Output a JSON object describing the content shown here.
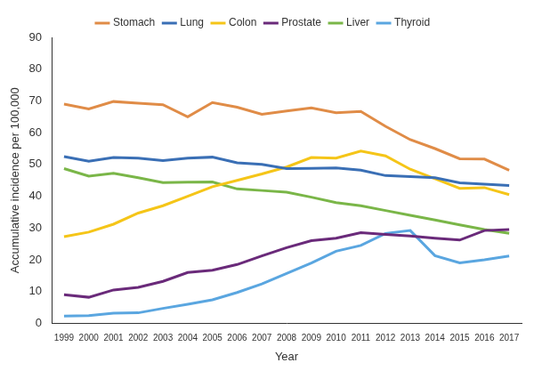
{
  "chart_data": {
    "type": "line",
    "x_label": "Year",
    "y_label": "Accumulative incidence per 100,000",
    "categories": [
      "1999",
      "2000",
      "2001",
      "2002",
      "2003",
      "2004",
      "2005",
      "2006",
      "2007",
      "2008",
      "2009",
      "2010",
      "2011",
      "2012",
      "2013",
      "2014",
      "2015",
      "2016",
      "2017"
    ],
    "series": [
      {
        "name": "Stomach",
        "color": "#e08c47",
        "values": [
          69,
          67.5,
          69.8,
          69.3,
          68.8,
          65,
          69.5,
          68,
          65.8,
          66.8,
          67.8,
          66.3,
          66.7,
          62,
          57.8,
          55,
          51.8,
          51.7,
          48.2
        ]
      },
      {
        "name": "Lung",
        "color": "#3a6fb5",
        "values": [
          52.5,
          51,
          52.2,
          52,
          51.2,
          52,
          52.3,
          50.5,
          50,
          48.7,
          48.8,
          48.9,
          48.2,
          46.5,
          46.2,
          45.8,
          44.2,
          43.8,
          43.4
        ]
      },
      {
        "name": "Colon",
        "color": "#f5c518",
        "values": [
          27.3,
          28.7,
          31.2,
          34.7,
          37,
          40,
          43,
          45,
          47,
          49.2,
          52.2,
          52,
          54.2,
          52.7,
          48.5,
          45.5,
          42.5,
          42.7,
          40.5
        ]
      },
      {
        "name": "Prostate",
        "color": "#6a2a7a",
        "values": [
          9,
          8.2,
          10.5,
          11.3,
          13.2,
          16,
          16.7,
          18.5,
          21.2,
          23.8,
          26,
          26.8,
          28.5,
          28,
          27.5,
          26.8,
          26.2,
          29.2,
          29.5
        ]
      },
      {
        "name": "Liver",
        "color": "#7ab648",
        "values": [
          48.7,
          46.3,
          47.2,
          45.8,
          44.3,
          44.4,
          44.5,
          42.3,
          41.8,
          41.3,
          39.7,
          38,
          37,
          35.5,
          34,
          32.5,
          31,
          29.5,
          28.3
        ]
      },
      {
        "name": "Thyroid",
        "color": "#5aa6e0",
        "values": [
          2.3,
          2.4,
          3.2,
          3.3,
          4.7,
          6,
          7.4,
          9.7,
          12.4,
          15.7,
          19,
          22.7,
          24.5,
          28.3,
          29.2,
          21.3,
          19,
          20,
          21.2
        ]
      }
    ],
    "ylim": [
      0,
      90
    ],
    "yticks": [
      0,
      10,
      20,
      30,
      40,
      50,
      60,
      70,
      80,
      90
    ],
    "grid": false,
    "legend": "top"
  }
}
